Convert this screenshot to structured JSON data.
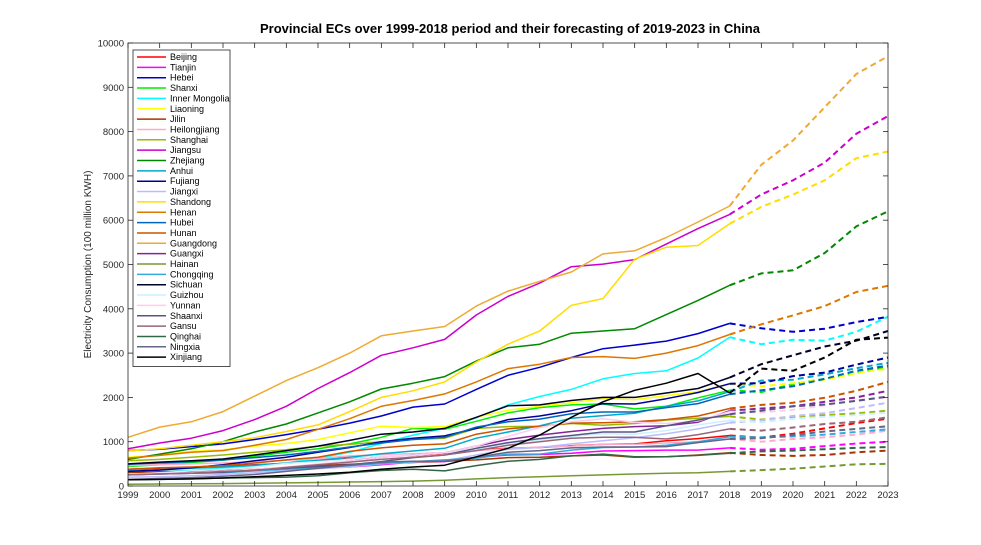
{
  "chart_data": {
    "type": "line",
    "title": "Provincial ECs over 1999-2018 period and their forecasting of 2019-2023 in China",
    "xlabel": "",
    "ylabel": "Electricity Consumption (100 million KWH)",
    "xlim": [
      1999,
      2023
    ],
    "ylim": [
      0,
      10000
    ],
    "xticks": [
      1999,
      2000,
      2001,
      2002,
      2003,
      2004,
      2005,
      2006,
      2007,
      2008,
      2009,
      2010,
      2011,
      2012,
      2013,
      2014,
      2015,
      2016,
      2017,
      2018,
      2019,
      2020,
      2021,
      2022,
      2023
    ],
    "yticks": [
      0,
      1000,
      2000,
      3000,
      4000,
      5000,
      6000,
      7000,
      8000,
      9000,
      10000
    ],
    "legend_position": "top-left",
    "x_actual": [
      1999,
      2000,
      2001,
      2002,
      2003,
      2004,
      2005,
      2006,
      2007,
      2008,
      2009,
      2010,
      2011,
      2012,
      2013,
      2014,
      2015,
      2016,
      2017,
      2018
    ],
    "x_forecast": [
      2018,
      2019,
      2020,
      2021,
      2022,
      2023
    ],
    "series": [
      {
        "name": "Beijing",
        "color": "#ff0000",
        "actual": [
          380,
          400,
          420,
          450,
          480,
          510,
          570,
          610,
          670,
          690,
          740,
          810,
          850,
          870,
          910,
          940,
          950,
          1020,
          1070,
          1140
        ],
        "forecast": [
          1140,
          1090,
          1180,
          1300,
          1420,
          1520
        ]
      },
      {
        "name": "Tianjin",
        "color": "#ff00ff",
        "actual": [
          260,
          280,
          300,
          320,
          350,
          390,
          410,
          430,
          480,
          540,
          550,
          650,
          700,
          710,
          740,
          790,
          800,
          810,
          810,
          860
        ],
        "forecast": [
          860,
          820,
          840,
          900,
          960,
          1000
        ]
      },
      {
        "name": "Hebei",
        "color": "#0000cc",
        "actual": [
          800,
          830,
          890,
          950,
          1050,
          1160,
          1280,
          1420,
          1580,
          1780,
          1850,
          2180,
          2500,
          2680,
          2900,
          3100,
          3180,
          3270,
          3440,
          3670
        ],
        "forecast": [
          3670,
          3560,
          3480,
          3550,
          3700,
          3820
        ]
      },
      {
        "name": "Shanxi",
        "color": "#00ee00",
        "actual": [
          440,
          480,
          530,
          580,
          670,
          760,
          840,
          950,
          1100,
          1300,
          1280,
          1460,
          1650,
          1770,
          1830,
          1850,
          1740,
          1800,
          1990,
          2160
        ],
        "forecast": [
          2160,
          2120,
          2300,
          2420,
          2560,
          2680
        ]
      },
      {
        "name": "Inner Mongolia",
        "color": "#00ffff",
        "actual": [
          300,
          320,
          350,
          400,
          450,
          520,
          630,
          760,
          960,
          1150,
          1300,
          1540,
          1830,
          2020,
          2180,
          2420,
          2540,
          2600,
          2890,
          3360
        ],
        "forecast": [
          3360,
          3200,
          3300,
          3280,
          3480,
          3820
        ]
      },
      {
        "name": "Liaoning",
        "color": "#ffff00",
        "actual": [
          650,
          700,
          780,
          820,
          900,
          960,
          1050,
          1200,
          1350,
          1320,
          1340,
          1550,
          1710,
          1800,
          1880,
          1970,
          1950,
          2040,
          2130,
          2300
        ],
        "forecast": [
          2300,
          2250,
          2320,
          2400,
          2550,
          2650
        ]
      },
      {
        "name": "Jilin",
        "color": "#aa3300",
        "actual": [
          300,
          320,
          330,
          350,
          380,
          420,
          460,
          490,
          510,
          530,
          560,
          590,
          640,
          650,
          680,
          700,
          650,
          660,
          700,
          750
        ],
        "forecast": [
          750,
          700,
          680,
          700,
          760,
          800
        ]
      },
      {
        "name": "Heilongjiang",
        "color": "#ffaacc",
        "actual": [
          460,
          480,
          500,
          520,
          550,
          580,
          620,
          680,
          710,
          730,
          750,
          800,
          840,
          880,
          900,
          940,
          940,
          970,
          1000,
          1060
        ],
        "forecast": [
          1060,
          1000,
          1060,
          1100,
          1160,
          1250
        ]
      },
      {
        "name": "Shanghai",
        "color": "#99bb00",
        "actual": [
          570,
          600,
          650,
          700,
          760,
          820,
          900,
          940,
          1000,
          1050,
          1080,
          1300,
          1340,
          1350,
          1410,
          1370,
          1410,
          1490,
          1530,
          1570
        ],
        "forecast": [
          1570,
          1500,
          1560,
          1600,
          1640,
          1700
        ]
      },
      {
        "name": "Jiangsu",
        "color": "#cc00cc",
        "actual": [
          840,
          970,
          1080,
          1250,
          1500,
          1800,
          2200,
          2560,
          2950,
          3120,
          3310,
          3860,
          4280,
          4580,
          4950,
          5010,
          5110,
          5460,
          5810,
          6130
        ],
        "forecast": [
          6130,
          6580,
          6900,
          7300,
          7950,
          8350
        ]
      },
      {
        "name": "Zhejiang",
        "color": "#008800",
        "actual": [
          600,
          720,
          840,
          1000,
          1220,
          1400,
          1650,
          1900,
          2190,
          2320,
          2470,
          2820,
          3120,
          3200,
          3450,
          3500,
          3550,
          3870,
          4190,
          4530
        ],
        "forecast": [
          4530,
          4800,
          4870,
          5260,
          5860,
          6200
        ]
      },
      {
        "name": "Anhui",
        "color": "#00aacc",
        "actual": [
          340,
          370,
          400,
          430,
          470,
          520,
          580,
          650,
          730,
          790,
          850,
          1080,
          1220,
          1360,
          1530,
          1590,
          1640,
          1800,
          1920,
          2130
        ],
        "forecast": [
          2130,
          2380,
          2400,
          2520,
          2660,
          2780
        ]
      },
      {
        "name": "Fujiang",
        "color": "#000099",
        "actual": [
          330,
          360,
          410,
          480,
          570,
          650,
          760,
          870,
          1000,
          1080,
          1130,
          1300,
          1500,
          1580,
          1700,
          1860,
          1850,
          1970,
          2110,
          2310
        ],
        "forecast": [
          2310,
          2320,
          2480,
          2560,
          2740,
          2900
        ]
      },
      {
        "name": "Jiangxi",
        "color": "#bbbbff",
        "actual": [
          200,
          210,
          230,
          260,
          300,
          350,
          390,
          430,
          500,
          540,
          570,
          700,
          830,
          870,
          950,
          1020,
          1090,
          1180,
          1290,
          1430
        ],
        "forecast": [
          1430,
          1480,
          1580,
          1640,
          1760,
          1880
        ]
      },
      {
        "name": "Shandong",
        "color": "#ffdd00",
        "actual": [
          790,
          840,
          920,
          1000,
          1090,
          1230,
          1380,
          1680,
          2000,
          2150,
          2350,
          2800,
          3200,
          3500,
          4080,
          4230,
          5120,
          5390,
          5430,
          5920
        ],
        "forecast": [
          5920,
          6300,
          6580,
          6900,
          7400,
          7550
        ]
      },
      {
        "name": "Henan",
        "color": "#dd7700",
        "actual": [
          630,
          690,
          760,
          800,
          920,
          1050,
          1280,
          1520,
          1800,
          1930,
          2080,
          2350,
          2650,
          2750,
          2900,
          2920,
          2880,
          3000,
          3170,
          3420
        ],
        "forecast": [
          3420,
          3650,
          3850,
          4060,
          4380,
          4520
        ]
      },
      {
        "name": "Hubei",
        "color": "#0066bb",
        "actual": [
          490,
          520,
          550,
          590,
          640,
          700,
          780,
          880,
          970,
          1050,
          1100,
          1330,
          1450,
          1510,
          1630,
          1670,
          1670,
          1770,
          1860,
          2070
        ],
        "forecast": [
          2070,
          2160,
          2250,
          2420,
          2600,
          2720
        ]
      },
      {
        "name": "Hunan",
        "color": "#cc5500",
        "actual": [
          380,
          410,
          430,
          460,
          520,
          590,
          650,
          780,
          860,
          920,
          950,
          1170,
          1290,
          1350,
          1420,
          1430,
          1450,
          1500,
          1580,
          1750
        ],
        "forecast": [
          1750,
          1830,
          1880,
          1990,
          2150,
          2350
        ]
      },
      {
        "name": "Guangdong",
        "color": "#eeaa33",
        "actual": [
          1100,
          1330,
          1450,
          1680,
          2030,
          2380,
          2670,
          3000,
          3390,
          3500,
          3600,
          4060,
          4400,
          4620,
          4830,
          5240,
          5310,
          5610,
          5960,
          6320
        ],
        "forecast": [
          6320,
          7250,
          7800,
          8550,
          9300,
          9700
        ]
      },
      {
        "name": "Guangxi",
        "color": "#882299",
        "actual": [
          260,
          280,
          310,
          340,
          370,
          420,
          480,
          560,
          650,
          700,
          750,
          900,
          1050,
          1150,
          1230,
          1300,
          1340,
          1360,
          1440,
          1700
        ],
        "forecast": [
          1700,
          1750,
          1800,
          1900,
          2000,
          2150
        ]
      },
      {
        "name": "Hainan",
        "color": "#779933",
        "actual": [
          40,
          45,
          50,
          55,
          60,
          70,
          80,
          90,
          100,
          110,
          130,
          160,
          190,
          210,
          230,
          250,
          270,
          290,
          300,
          330
        ],
        "forecast": [
          330,
          360,
          390,
          440,
          490,
          500
        ]
      },
      {
        "name": "Chongqing",
        "color": "#33aadd",
        "actual": [
          260,
          270,
          290,
          300,
          340,
          380,
          420,
          460,
          510,
          550,
          590,
          630,
          720,
          720,
          810,
          870,
          880,
          920,
          1000,
          1110
        ],
        "forecast": [
          1110,
          1100,
          1120,
          1160,
          1220,
          1280
        ]
      },
      {
        "name": "Sichuan",
        "color": "#000022",
        "actual": [
          500,
          540,
          570,
          610,
          700,
          800,
          900,
          1030,
          1170,
          1220,
          1300,
          1550,
          1810,
          1830,
          1930,
          2000,
          2000,
          2100,
          2200,
          2450
        ],
        "forecast": [
          2450,
          2750,
          2950,
          3150,
          3280,
          3500
        ]
      },
      {
        "name": "Guizhou",
        "color": "#ccf0ff",
        "actual": [
          260,
          300,
          340,
          380,
          430,
          510,
          550,
          600,
          680,
          700,
          750,
          830,
          950,
          1040,
          1120,
          1180,
          1170,
          1250,
          1380,
          1480
        ],
        "forecast": [
          1480,
          1440,
          1520,
          1560,
          1600,
          1660
        ]
      },
      {
        "name": "Yunnan",
        "color": "#ffccee",
        "actual": [
          270,
          290,
          300,
          340,
          380,
          430,
          500,
          560,
          650,
          690,
          750,
          900,
          1120,
          1320,
          1450,
          1520,
          1440,
          1410,
          1470,
          1680
        ],
        "forecast": [
          1680,
          1660,
          1720,
          1820,
          1940,
          2000
        ]
      },
      {
        "name": "Shaanxi",
        "color": "#555588",
        "actual": [
          250,
          270,
          290,
          310,
          360,
          400,
          440,
          480,
          550,
          640,
          700,
          850,
          980,
          1070,
          1140,
          1220,
          1220,
          1360,
          1490,
          1620
        ],
        "forecast": [
          1620,
          1700,
          1800,
          1840,
          1920,
          2020
        ]
      },
      {
        "name": "Gansu",
        "color": "#996677",
        "actual": [
          250,
          270,
          290,
          330,
          350,
          420,
          480,
          540,
          600,
          650,
          700,
          800,
          920,
          1000,
          1080,
          1100,
          1100,
          1060,
          1160,
          1290
        ],
        "forecast": [
          1290,
          1250,
          1320,
          1400,
          1450,
          1550
        ]
      },
      {
        "name": "Qinghai",
        "color": "#336644",
        "actual": [
          140,
          150,
          160,
          180,
          190,
          200,
          230,
          300,
          350,
          380,
          340,
          460,
          560,
          600,
          680,
          720,
          660,
          660,
          690,
          740
        ],
        "forecast": [
          740,
          780,
          800,
          830,
          860,
          880
        ]
      },
      {
        "name": "Ningxia",
        "color": "#666688",
        "actual": [
          150,
          170,
          190,
          220,
          260,
          330,
          400,
          470,
          540,
          560,
          560,
          650,
          760,
          800,
          860,
          880,
          880,
          890,
          980,
          1060
        ],
        "forecast": [
          1060,
          1080,
          1150,
          1230,
          1290,
          1350
        ]
      },
      {
        "name": "Xinjiang",
        "color": "#000000",
        "actual": [
          140,
          150,
          160,
          180,
          210,
          240,
          270,
          310,
          380,
          430,
          470,
          660,
          850,
          1150,
          1550,
          1900,
          2160,
          2320,
          2540,
          2100
        ],
        "forecast": [
          2100,
          2650,
          2600,
          2900,
          3300,
          3350
        ]
      }
    ]
  }
}
